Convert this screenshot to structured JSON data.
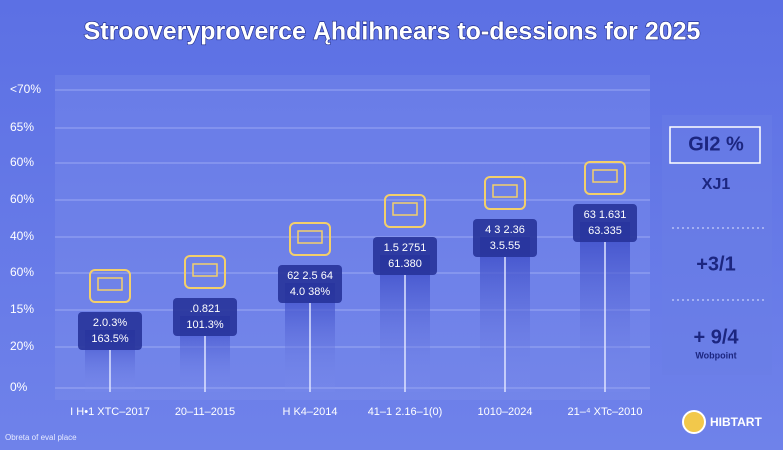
{
  "header": {
    "title": "Strooveryproverce Ąhdihnears to-dessions for 2025"
  },
  "y_axis_labels": [
    "<70%",
    "65%",
    "60%",
    "60%",
    "40%",
    "60%",
    "15%",
    "20%",
    "0%"
  ],
  "columns": [
    {
      "label": "I H•1 XTC–2017",
      "lines": [
        "2.0.3%",
        "163.5%"
      ]
    },
    {
      "label": "20–11–2015",
      "lines": [
        ".0.821",
        "101.3%"
      ]
    },
    {
      "label": "H K4–2014",
      "lines": [
        "62 2.5 64",
        "4.0 38%"
      ]
    },
    {
      "label": "41–1 2.16–1(0)",
      "lines": [
        "1.5 2751",
        "61.380"
      ]
    },
    {
      "label": "1010–2024",
      "lines": [
        "4 3 2.36",
        "3.5.55"
      ]
    },
    {
      "label": "21–⁴ XTc–2010",
      "lines": [
        "63 1.631",
        "63.335"
      ]
    }
  ],
  "side_panel": {
    "items": [
      {
        "main": "GI2 %",
        "sub": "XJ1"
      },
      {
        "main": "+3/1",
        "sub": ""
      },
      {
        "main": "+ 9/4",
        "sub": "Wobpoint"
      }
    ]
  },
  "footer": {
    "note": "Obreta of eval place",
    "logo": "HIBTART"
  }
}
